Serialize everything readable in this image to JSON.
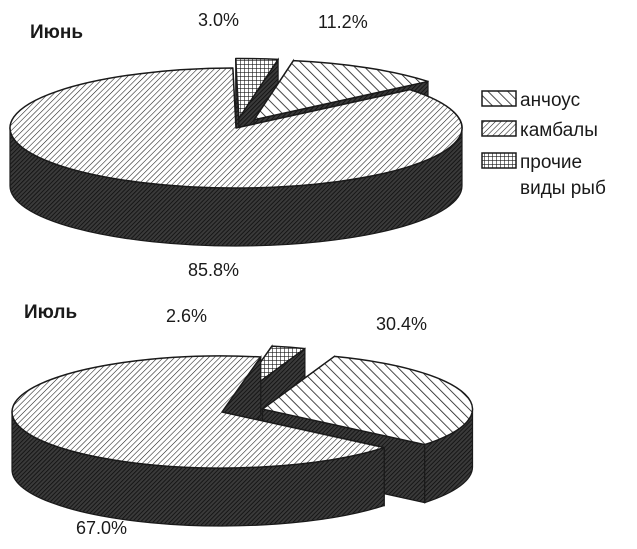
{
  "chart_data": [
    {
      "type": "pie",
      "title": "Июнь",
      "categories": [
        "анчоус",
        "камбалы",
        "прочие виды рыб"
      ],
      "values": [
        11.2,
        85.8,
        3.0
      ],
      "value_labels": [
        "11.2%",
        "85.8%",
        "3.0%"
      ],
      "exploded": [
        "анчоус",
        "прочие виды рыб"
      ],
      "style": "3d-hatched"
    },
    {
      "type": "pie",
      "title": "Июль",
      "categories": [
        "анчоус",
        "камбалы",
        "прочие виды рыб"
      ],
      "values": [
        30.4,
        67.0,
        2.6
      ],
      "value_labels": [
        "30.4%",
        "67.0%",
        "2.6%"
      ],
      "exploded": [
        "анчоус",
        "прочие виды рыб"
      ],
      "style": "3d-hatched"
    }
  ],
  "legend": {
    "placement": "right",
    "items": [
      {
        "label": "анчоус",
        "pattern": "back-diagonal"
      },
      {
        "label": "камбалы",
        "pattern": "forward-diagonal"
      },
      {
        "label_lines": [
          "прочие",
          "виды рыб"
        ],
        "pattern": "crosshatch"
      }
    ]
  },
  "colors": {
    "ink": "#1a1a1a",
    "side": "#2a2a2a",
    "background": "#ffffff"
  }
}
